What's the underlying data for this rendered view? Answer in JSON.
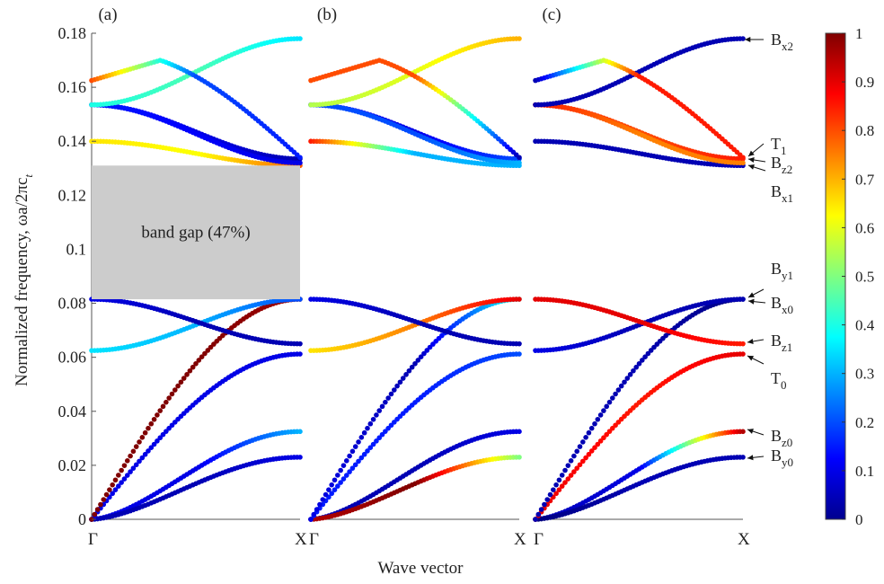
{
  "figure": {
    "ylabel": "Normalized  frequency,  ωa/2πc",
    "ylabel_sub": "t",
    "xlabel": "Wave vector",
    "panel_labels": [
      "(a)",
      "(b)",
      "(c)"
    ],
    "x_start_label": "Γ",
    "x_end_label": "X",
    "band_gap_label": "band gap (47%)",
    "colorbar_ticks": [
      "0",
      "0.1",
      "0.2",
      "0.3",
      "0.4",
      "0.5",
      "0.6",
      "0.7",
      "0.8",
      "0.9",
      "1"
    ],
    "mode_labels": [
      {
        "id": "bx2",
        "main": "B",
        "sub": "x2"
      },
      {
        "id": "t1",
        "main": "T",
        "sub": "1"
      },
      {
        "id": "bz2",
        "main": "B",
        "sub": "z2"
      },
      {
        "id": "bx1",
        "main": "B",
        "sub": "x1"
      },
      {
        "id": "by1",
        "main": "B",
        "sub": "y1"
      },
      {
        "id": "bx0",
        "main": "B",
        "sub": "x0"
      },
      {
        "id": "bz1",
        "main": "B",
        "sub": "z1"
      },
      {
        "id": "t0",
        "main": "T",
        "sub": "0"
      },
      {
        "id": "bz0",
        "main": "B",
        "sub": "z0"
      },
      {
        "id": "by0",
        "main": "B",
        "sub": "y0"
      }
    ]
  },
  "chart_data": {
    "type": "line",
    "x_labels": [
      "Γ",
      "X"
    ],
    "ylim": [
      0,
      0.18
    ],
    "yticks": [
      0,
      0.02,
      0.04,
      0.06,
      0.08,
      0.1,
      0.12,
      0.14,
      0.16,
      0.18
    ],
    "band_gap": {
      "lower": 0.0815,
      "upper": 0.131,
      "percent": 47
    },
    "colorscale": {
      "name": "jet",
      "range": [
        0,
        1
      ]
    },
    "bands": [
      {
        "id": "bz0-band",
        "shape": "acoustic",
        "start": 0,
        "end": 0.0325
      },
      {
        "id": "by0-band",
        "shape": "acoustic",
        "start": 0,
        "end": 0.023
      },
      {
        "id": "t0-band",
        "shape": "sine",
        "start": 0,
        "end": 0.0612
      },
      {
        "id": "bx0-band",
        "shape": "sine",
        "start": 0,
        "end": 0.0815
      },
      {
        "id": "by1-band",
        "shape": "cos",
        "start": 0.0625,
        "end": 0.0815
      },
      {
        "id": "bz1-band",
        "shape": "cos",
        "start": 0.0815,
        "end": 0.065
      },
      {
        "id": "bx1-band",
        "shape": "cos",
        "start": 0.14,
        "end": 0.131
      },
      {
        "id": "bz2-band",
        "shape": "cos",
        "start": 0.1535,
        "end": 0.1335
      },
      {
        "id": "t1-band",
        "shape": "cos",
        "start": 0.1535,
        "end": 0.132
      },
      {
        "id": "bx2-band",
        "shape": "cos",
        "start": 0.1535,
        "end": 0.178
      },
      {
        "id": "peak-band",
        "shape": "peak",
        "start": 0.1625,
        "peak": 0.17,
        "peak_x": 0.33
      }
    ],
    "panels": [
      {
        "label": "(a)",
        "colors": {
          "bz0-band": [
            0.1,
            0.1,
            0.3
          ],
          "by0-band": [
            0.05,
            0.05,
            0.1
          ],
          "t0-band": [
            0.1,
            0.1,
            0.1
          ],
          "bx0-band": [
            1.0,
            1.0,
            0.97
          ],
          "by1-band": [
            0.35,
            0.3,
            0.2
          ],
          "bz1-band": [
            0.1,
            0.05,
            0.05
          ],
          "bx1-band": [
            0.65,
            0.62,
            0.78
          ],
          "bz2-band": [
            0.15,
            0.1,
            0.05
          ],
          "t1-band": [
            0.15,
            0.12,
            0.1
          ],
          "bx2-band": [
            0.4,
            0.45,
            0.35
          ],
          "peak-band": [
            0.8,
            0.2,
            0.15
          ]
        }
      },
      {
        "label": "(b)",
        "colors": {
          "bz0-band": [
            0.05,
            0.05,
            0.1
          ],
          "by0-band": [
            0.95,
            1.0,
            0.5
          ],
          "t0-band": [
            0.15,
            0.15,
            0.2
          ],
          "bx0-band": [
            0.1,
            0.05,
            0.4
          ],
          "by1-band": [
            0.65,
            0.75,
            0.9
          ],
          "bz1-band": [
            0.1,
            0.05,
            0.05
          ],
          "bx1-band": [
            0.85,
            0.3,
            0.3
          ],
          "bz2-band": [
            0.12,
            0.1,
            0.2
          ],
          "t1-band": [
            0.2,
            0.2,
            0.3
          ],
          "bx2-band": [
            0.55,
            0.6,
            0.7
          ],
          "peak-band": [
            0.8,
            0.8,
            0.05
          ]
        }
      },
      {
        "label": "(c)",
        "colors": {
          "bz0-band": [
            0.05,
            0.1,
            0.95
          ],
          "by0-band": [
            0.0,
            0.05,
            0.05
          ],
          "t0-band": [
            0.9,
            0.85,
            0.9
          ],
          "bx0-band": [
            0.05,
            0.05,
            0.0
          ],
          "by1-band": [
            0.1,
            0.05,
            0.05
          ],
          "bz1-band": [
            0.9,
            0.9,
            0.85
          ],
          "bx1-band": [
            0.05,
            0.05,
            0.05
          ],
          "bz2-band": [
            0.85,
            0.8,
            0.85
          ],
          "t1-band": [
            0.85,
            0.75,
            0.75
          ],
          "bx2-band": [
            0.05,
            0.05,
            0.05
          ],
          "peak-band": [
            0.05,
            0.85,
            0.85
          ]
        }
      }
    ]
  }
}
